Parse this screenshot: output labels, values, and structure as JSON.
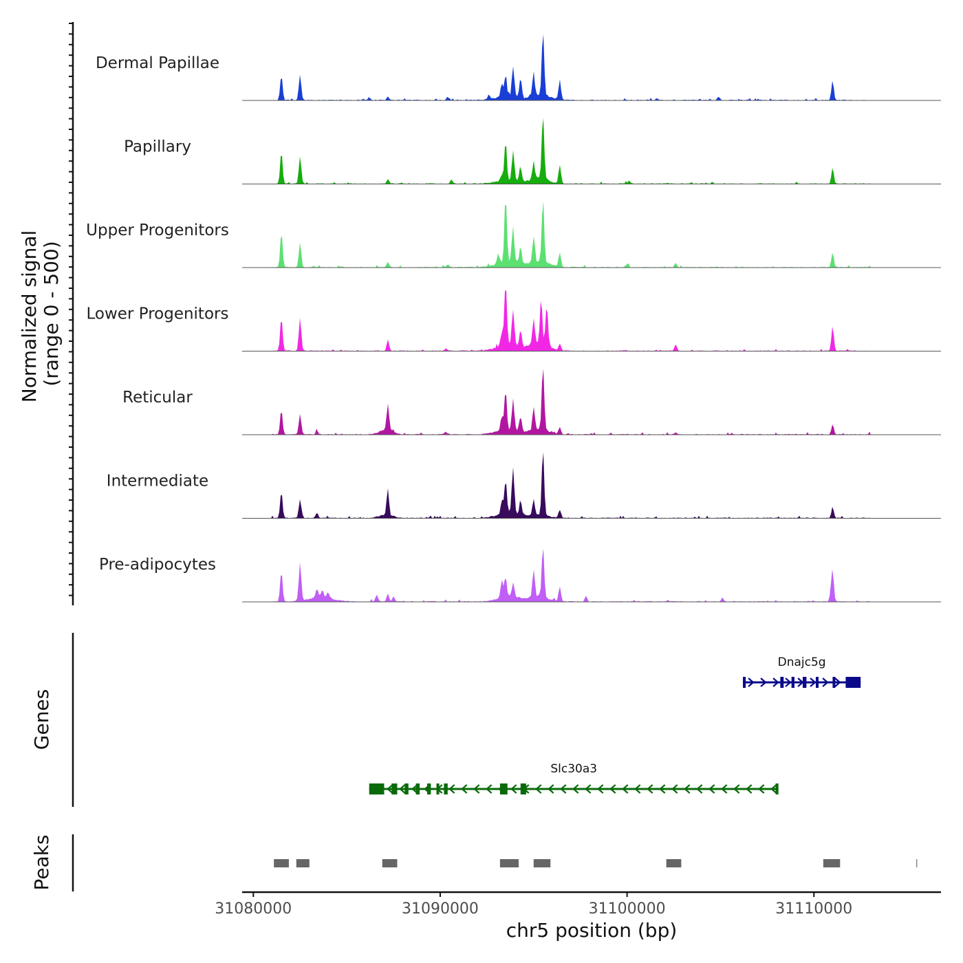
{
  "chart_data": {
    "type": "area",
    "title": "",
    "region": {
      "chrom": "chr5",
      "start": 31079400,
      "end": 31116800
    },
    "xlabel": "chr5 position (bp)",
    "ylabel_line1": "Normalized signal",
    "ylabel_line2": "(range 0 - 500)",
    "ylim": [
      0,
      500
    ],
    "xticks": [
      31080000,
      31090000,
      31100000,
      31110000
    ],
    "xtick_labels": [
      "31080000",
      "31090000",
      "31100000",
      "31110000"
    ],
    "tracks": [
      {
        "name": "Dermal Papillae",
        "color": "#1a3fd6",
        "max": 500,
        "peaks": [
          [
            31081500,
            0.38
          ],
          [
            31082500,
            0.39
          ],
          [
            31086200,
            0.04
          ],
          [
            31087200,
            0.05
          ],
          [
            31090400,
            0.05
          ],
          [
            31092600,
            0.07
          ],
          [
            31093300,
            0.2
          ],
          [
            31093500,
            0.32
          ],
          [
            31093900,
            0.47
          ],
          [
            31094300,
            0.3
          ],
          [
            31095000,
            0.36
          ],
          [
            31095500,
            1.0
          ],
          [
            31096400,
            0.28
          ],
          [
            31101600,
            0.03
          ],
          [
            31104900,
            0.05
          ],
          [
            31111000,
            0.3
          ]
        ],
        "bumps": [
          [
            31093600,
            800,
            0.08
          ],
          [
            31095400,
            700,
            0.1
          ]
        ]
      },
      {
        "name": "Papillary",
        "color": "#16ad0e",
        "max": 500,
        "peaks": [
          [
            31081500,
            0.5
          ],
          [
            31082500,
            0.42
          ],
          [
            31087200,
            0.07
          ],
          [
            31090600,
            0.06
          ],
          [
            31093300,
            0.1
          ],
          [
            31093500,
            0.59
          ],
          [
            31093900,
            0.46
          ],
          [
            31094300,
            0.22
          ],
          [
            31095000,
            0.27
          ],
          [
            31095500,
            1.0
          ],
          [
            31096400,
            0.28
          ],
          [
            31100100,
            0.05
          ],
          [
            31111000,
            0.24
          ]
        ],
        "bumps": [
          [
            31093600,
            800,
            0.07
          ],
          [
            31095300,
            700,
            0.1
          ]
        ]
      },
      {
        "name": "Upper Progenitors",
        "color": "#5ce072",
        "max": 500,
        "peaks": [
          [
            31081500,
            0.52
          ],
          [
            31082500,
            0.38
          ],
          [
            31087200,
            0.08
          ],
          [
            31090400,
            0.04
          ],
          [
            31093100,
            0.12
          ],
          [
            31093500,
            1.0
          ],
          [
            31093900,
            0.53
          ],
          [
            31094300,
            0.27
          ],
          [
            31095000,
            0.4
          ],
          [
            31095500,
            0.98
          ],
          [
            31096400,
            0.22
          ],
          [
            31100000,
            0.05
          ],
          [
            31102600,
            0.06
          ],
          [
            31111000,
            0.23
          ]
        ],
        "bumps": [
          [
            31093600,
            800,
            0.12
          ],
          [
            31095300,
            700,
            0.12
          ]
        ]
      },
      {
        "name": "Lower Progenitors",
        "color": "#f227e6",
        "max": 500,
        "peaks": [
          [
            31081500,
            0.51
          ],
          [
            31082500,
            0.51
          ],
          [
            31087200,
            0.17
          ],
          [
            31090300,
            0.04
          ],
          [
            31093300,
            0.2
          ],
          [
            31093500,
            0.96
          ],
          [
            31093900,
            0.53
          ],
          [
            31094300,
            0.26
          ],
          [
            31095000,
            0.37
          ],
          [
            31095400,
            0.66
          ],
          [
            31095700,
            0.62
          ],
          [
            31096400,
            0.1
          ],
          [
            31102600,
            0.1
          ],
          [
            31111000,
            0.38
          ]
        ],
        "bumps": [
          [
            31093600,
            800,
            0.12
          ],
          [
            31095300,
            700,
            0.15
          ]
        ]
      },
      {
        "name": "Reticular",
        "color": "#b216a0",
        "max": 500,
        "peaks": [
          [
            31081500,
            0.38
          ],
          [
            31082500,
            0.31
          ],
          [
            31083400,
            0.06
          ],
          [
            31087200,
            0.38
          ],
          [
            31090300,
            0.04
          ],
          [
            31093300,
            0.2
          ],
          [
            31093500,
            0.61
          ],
          [
            31093900,
            0.46
          ],
          [
            31094300,
            0.22
          ],
          [
            31095000,
            0.34
          ],
          [
            31095500,
            1.0
          ],
          [
            31096400,
            0.1
          ],
          [
            31102600,
            0.03
          ],
          [
            31111000,
            0.16
          ]
        ],
        "bumps": [
          [
            31087100,
            500,
            0.1
          ],
          [
            31093600,
            800,
            0.1
          ],
          [
            31095300,
            700,
            0.1
          ]
        ]
      },
      {
        "name": "Intermediate",
        "color": "#380b5c",
        "max": 500,
        "peaks": [
          [
            31081500,
            0.4
          ],
          [
            31082500,
            0.29
          ],
          [
            31083400,
            0.08
          ],
          [
            31087200,
            0.38
          ],
          [
            31093300,
            0.2
          ],
          [
            31093500,
            0.51
          ],
          [
            31093900,
            0.69
          ],
          [
            31094300,
            0.22
          ],
          [
            31095000,
            0.24
          ],
          [
            31095500,
            1.0
          ],
          [
            31096400,
            0.1
          ],
          [
            31111000,
            0.17
          ]
        ],
        "bumps": [
          [
            31087100,
            500,
            0.06
          ],
          [
            31093700,
            800,
            0.1
          ],
          [
            31095300,
            700,
            0.06
          ]
        ]
      },
      {
        "name": "Pre-adipocytes",
        "color": "#c05ef5",
        "max": 500,
        "peaks": [
          [
            31081500,
            0.46
          ],
          [
            31082500,
            0.59
          ],
          [
            31083400,
            0.14
          ],
          [
            31083700,
            0.12
          ],
          [
            31084000,
            0.1
          ],
          [
            31086600,
            0.1
          ],
          [
            31087200,
            0.12
          ],
          [
            31087500,
            0.08
          ],
          [
            31093300,
            0.26
          ],
          [
            31093500,
            0.3
          ],
          [
            31093900,
            0.23
          ],
          [
            31095000,
            0.42
          ],
          [
            31095500,
            0.78
          ],
          [
            31096400,
            0.22
          ],
          [
            31097800,
            0.08
          ],
          [
            31105100,
            0.06
          ],
          [
            31110900,
            0.1
          ],
          [
            31111000,
            0.46
          ]
        ],
        "bumps": [
          [
            31083600,
            900,
            0.08
          ],
          [
            31093700,
            800,
            0.1
          ],
          [
            31095300,
            700,
            0.1
          ]
        ]
      }
    ],
    "genes_label": "Genes",
    "genes": [
      {
        "name": "Dnajc5g",
        "strand": "+",
        "color": "#0a0a8a",
        "start": 31106200,
        "end": 31112500,
        "exons": [
          [
            31106200,
            31106350
          ],
          [
            31108200,
            31108380
          ],
          [
            31108800,
            31108960
          ],
          [
            31109400,
            31109600
          ],
          [
            31110100,
            31110220
          ],
          [
            31111000,
            31111100
          ],
          [
            31111700,
            31112500
          ]
        ]
      },
      {
        "name": "Slc30a3",
        "strand": "-",
        "color": "#0a6a0a",
        "start": 31086200,
        "end": 31108100,
        "exons": [
          [
            31086200,
            31087000
          ],
          [
            31087400,
            31087700
          ],
          [
            31088100,
            31088300
          ],
          [
            31088700,
            31088900
          ],
          [
            31089300,
            31089500
          ],
          [
            31089800,
            31089950
          ],
          [
            31090200,
            31090400
          ],
          [
            31093200,
            31093600
          ],
          [
            31094300,
            31094600
          ],
          [
            31107950,
            31108100
          ]
        ]
      }
    ],
    "peaks_label": "Peaks",
    "peaks": [
      [
        31081100,
        31081900
      ],
      [
        31082300,
        31083000
      ],
      [
        31086900,
        31087700
      ],
      [
        31093200,
        31094200
      ],
      [
        31095000,
        31095900
      ],
      [
        31102100,
        31102900
      ],
      [
        31110500,
        31111400
      ],
      [
        31115500,
        31115550
      ]
    ]
  }
}
